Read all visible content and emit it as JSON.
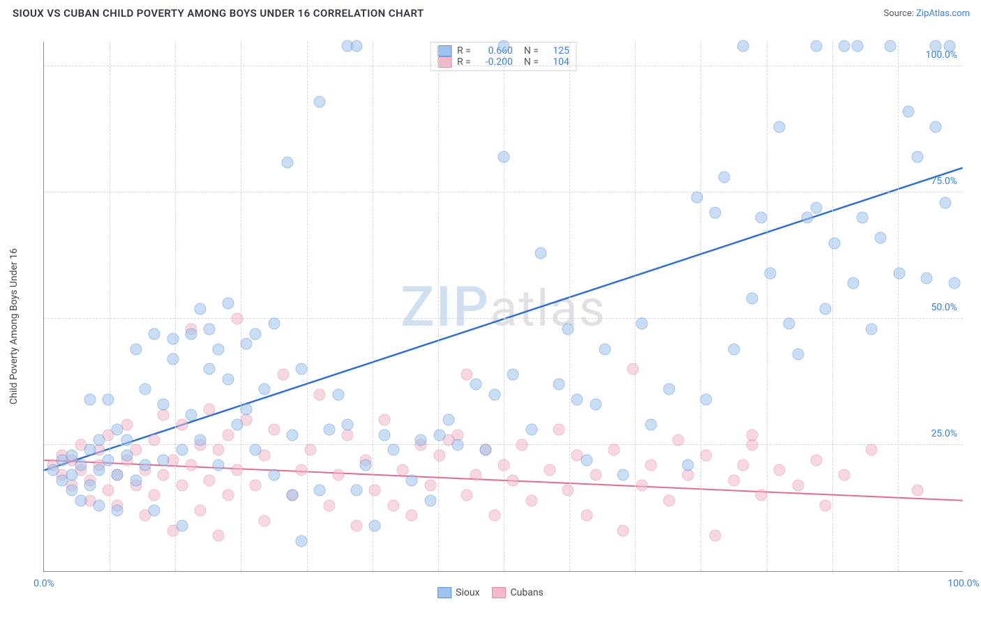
{
  "header": {
    "title": "SIOUX VS CUBAN CHILD POVERTY AMONG BOYS UNDER 16 CORRELATION CHART",
    "source_prefix": "Source: ",
    "source_link": "ZipAtlas.com"
  },
  "chart": {
    "type": "scatter",
    "y_axis_label": "Child Poverty Among Boys Under 16",
    "xlim": [
      0,
      100
    ],
    "ylim": [
      0,
      105
    ],
    "xticks": [
      0,
      100
    ],
    "xtick_labels": [
      "0.0%",
      "100.0%"
    ],
    "yticks": [
      25,
      50,
      75,
      100
    ],
    "ytick_labels": [
      "25.0%",
      "50.0%",
      "75.0%",
      "100.0%"
    ],
    "gridlines_x_count": 14,
    "background_color": "#ffffff",
    "grid_color": "#d5d5de",
    "axis_color": "#8a8aa0",
    "tick_label_color": "#3a7fd6",
    "marker_radius": 8.5,
    "marker_opacity": 0.55,
    "marker_stroke_width": 1.2,
    "watermark": {
      "z": "ZIP",
      "rest": "atlas"
    },
    "series": [
      {
        "name": "Sioux",
        "fill_color": "#9dc3ee",
        "stroke_color": "#5b93d6",
        "line_color": "#2e6fd0",
        "line_width": 2.5,
        "trend": {
          "x1": 0,
          "y1": 20,
          "x2": 100,
          "y2": 80
        },
        "R": "0.660",
        "N": "125",
        "points": [
          [
            1,
            20
          ],
          [
            2,
            18
          ],
          [
            2,
            22
          ],
          [
            3,
            19
          ],
          [
            3,
            16
          ],
          [
            3,
            23
          ],
          [
            4,
            21
          ],
          [
            4,
            14
          ],
          [
            5,
            24
          ],
          [
            5,
            17
          ],
          [
            5,
            34
          ],
          [
            6,
            20
          ],
          [
            6,
            13
          ],
          [
            6,
            26
          ],
          [
            7,
            22
          ],
          [
            7,
            34
          ],
          [
            8,
            19
          ],
          [
            8,
            12
          ],
          [
            8,
            28
          ],
          [
            9,
            23
          ],
          [
            9,
            26
          ],
          [
            10,
            44
          ],
          [
            10,
            18
          ],
          [
            11,
            36
          ],
          [
            11,
            21
          ],
          [
            12,
            12
          ],
          [
            12,
            47
          ],
          [
            13,
            33
          ],
          [
            13,
            22
          ],
          [
            14,
            46
          ],
          [
            14,
            42
          ],
          [
            15,
            24
          ],
          [
            15,
            9
          ],
          [
            16,
            31
          ],
          [
            16,
            47
          ],
          [
            17,
            52
          ],
          [
            17,
            26
          ],
          [
            18,
            40
          ],
          [
            18,
            48
          ],
          [
            19,
            44
          ],
          [
            19,
            21
          ],
          [
            20,
            38
          ],
          [
            20,
            53
          ],
          [
            21,
            29
          ],
          [
            22,
            45
          ],
          [
            22,
            32
          ],
          [
            23,
            24
          ],
          [
            23,
            47
          ],
          [
            24,
            36
          ],
          [
            25,
            19
          ],
          [
            25,
            49
          ],
          [
            26.5,
            81
          ],
          [
            27,
            27
          ],
          [
            27,
            15
          ],
          [
            28,
            6
          ],
          [
            28,
            40
          ],
          [
            30,
            16
          ],
          [
            30,
            93
          ],
          [
            31,
            28
          ],
          [
            32,
            35
          ],
          [
            33,
            29
          ],
          [
            33,
            104
          ],
          [
            34,
            16
          ],
          [
            34,
            104
          ],
          [
            35,
            21
          ],
          [
            36,
            9
          ],
          [
            37,
            27
          ],
          [
            38,
            24
          ],
          [
            40,
            18
          ],
          [
            41,
            26
          ],
          [
            42,
            14
          ],
          [
            43,
            27
          ],
          [
            44,
            30
          ],
          [
            45,
            25
          ],
          [
            47,
            37
          ],
          [
            48,
            24
          ],
          [
            49,
            35
          ],
          [
            50,
            82
          ],
          [
            50,
            104
          ],
          [
            51,
            39
          ],
          [
            53,
            28
          ],
          [
            54,
            63
          ],
          [
            56,
            37
          ],
          [
            57,
            48
          ],
          [
            58,
            34
          ],
          [
            59,
            22
          ],
          [
            60,
            33
          ],
          [
            61,
            44
          ],
          [
            63,
            19
          ],
          [
            65,
            49
          ],
          [
            66,
            29
          ],
          [
            68,
            36
          ],
          [
            70,
            21
          ],
          [
            71,
            74
          ],
          [
            72,
            34
          ],
          [
            73,
            71
          ],
          [
            74,
            78
          ],
          [
            75,
            44
          ],
          [
            76,
            104
          ],
          [
            77,
            54
          ],
          [
            78,
            70
          ],
          [
            79,
            59
          ],
          [
            80,
            88
          ],
          [
            81,
            49
          ],
          [
            82,
            43
          ],
          [
            83,
            70
          ],
          [
            84,
            72
          ],
          [
            84,
            104
          ],
          [
            85,
            52
          ],
          [
            86,
            65
          ],
          [
            87,
            104
          ],
          [
            88,
            57
          ],
          [
            88.5,
            104
          ],
          [
            89,
            70
          ],
          [
            90,
            48
          ],
          [
            91,
            66
          ],
          [
            92,
            104
          ],
          [
            93,
            59
          ],
          [
            94,
            91
          ],
          [
            95,
            82
          ],
          [
            96,
            58
          ],
          [
            97,
            88
          ],
          [
            97,
            104
          ],
          [
            98,
            73
          ],
          [
            98.5,
            104
          ],
          [
            99,
            57
          ]
        ]
      },
      {
        "name": "Cubans",
        "fill_color": "#f3b9c8",
        "stroke_color": "#e48aa4",
        "line_color": "#e26b8f",
        "line_width": 2,
        "trend": {
          "x1": 0,
          "y1": 22,
          "x2": 100,
          "y2": 14
        },
        "R": "-0.200",
        "N": "104",
        "points": [
          [
            1,
            21
          ],
          [
            2,
            19
          ],
          [
            2,
            23
          ],
          [
            3,
            17
          ],
          [
            3,
            22
          ],
          [
            4,
            20
          ],
          [
            4,
            25
          ],
          [
            5,
            18
          ],
          [
            5,
            14
          ],
          [
            6,
            24
          ],
          [
            6,
            21
          ],
          [
            7,
            16
          ],
          [
            7,
            27
          ],
          [
            8,
            19
          ],
          [
            8,
            13
          ],
          [
            9,
            22
          ],
          [
            9,
            29
          ],
          [
            10,
            17
          ],
          [
            10,
            24
          ],
          [
            11,
            20
          ],
          [
            11,
            11
          ],
          [
            12,
            26
          ],
          [
            12,
            15
          ],
          [
            13,
            31
          ],
          [
            13,
            19
          ],
          [
            14,
            22
          ],
          [
            14,
            8
          ],
          [
            15,
            29
          ],
          [
            15,
            17
          ],
          [
            16,
            48
          ],
          [
            16,
            21
          ],
          [
            17,
            25
          ],
          [
            17,
            12
          ],
          [
            18,
            32
          ],
          [
            18,
            18
          ],
          [
            19,
            24
          ],
          [
            19,
            7
          ],
          [
            20,
            27
          ],
          [
            20,
            15
          ],
          [
            21,
            50
          ],
          [
            21,
            20
          ],
          [
            22,
            30
          ],
          [
            23,
            17
          ],
          [
            24,
            23
          ],
          [
            24,
            10
          ],
          [
            25,
            28
          ],
          [
            26,
            39
          ],
          [
            27,
            15
          ],
          [
            28,
            20
          ],
          [
            29,
            24
          ],
          [
            30,
            35
          ],
          [
            31,
            13
          ],
          [
            32,
            19
          ],
          [
            33,
            27
          ],
          [
            34,
            9
          ],
          [
            35,
            22
          ],
          [
            36,
            16
          ],
          [
            37,
            30
          ],
          [
            38,
            13
          ],
          [
            39,
            20
          ],
          [
            40,
            11
          ],
          [
            41,
            25
          ],
          [
            42,
            17
          ],
          [
            43,
            23
          ],
          [
            44,
            26
          ],
          [
            45,
            27
          ],
          [
            46,
            15
          ],
          [
            46,
            39
          ],
          [
            47,
            19
          ],
          [
            48,
            24
          ],
          [
            49,
            11
          ],
          [
            50,
            21
          ],
          [
            51,
            18
          ],
          [
            52,
            25
          ],
          [
            53,
            14
          ],
          [
            55,
            20
          ],
          [
            56,
            28
          ],
          [
            57,
            16
          ],
          [
            58,
            23
          ],
          [
            59,
            11
          ],
          [
            60,
            19
          ],
          [
            62,
            24
          ],
          [
            63,
            8
          ],
          [
            64,
            40
          ],
          [
            65,
            17
          ],
          [
            66,
            21
          ],
          [
            68,
            14
          ],
          [
            69,
            26
          ],
          [
            70,
            19
          ],
          [
            72,
            23
          ],
          [
            73,
            7
          ],
          [
            75,
            18
          ],
          [
            76,
            21
          ],
          [
            77,
            25
          ],
          [
            77,
            27
          ],
          [
            78,
            15
          ],
          [
            80,
            20
          ],
          [
            82,
            17
          ],
          [
            84,
            22
          ],
          [
            85,
            13
          ],
          [
            87,
            19
          ],
          [
            90,
            24
          ],
          [
            95,
            16
          ]
        ]
      }
    ],
    "legend_top": {
      "rows": [
        {
          "series_idx": 0,
          "r_label": "R =",
          "n_label": "N ="
        },
        {
          "series_idx": 1,
          "r_label": "R =",
          "n_label": "N ="
        }
      ]
    },
    "legend_bottom": [
      "Sioux",
      "Cubans"
    ]
  }
}
